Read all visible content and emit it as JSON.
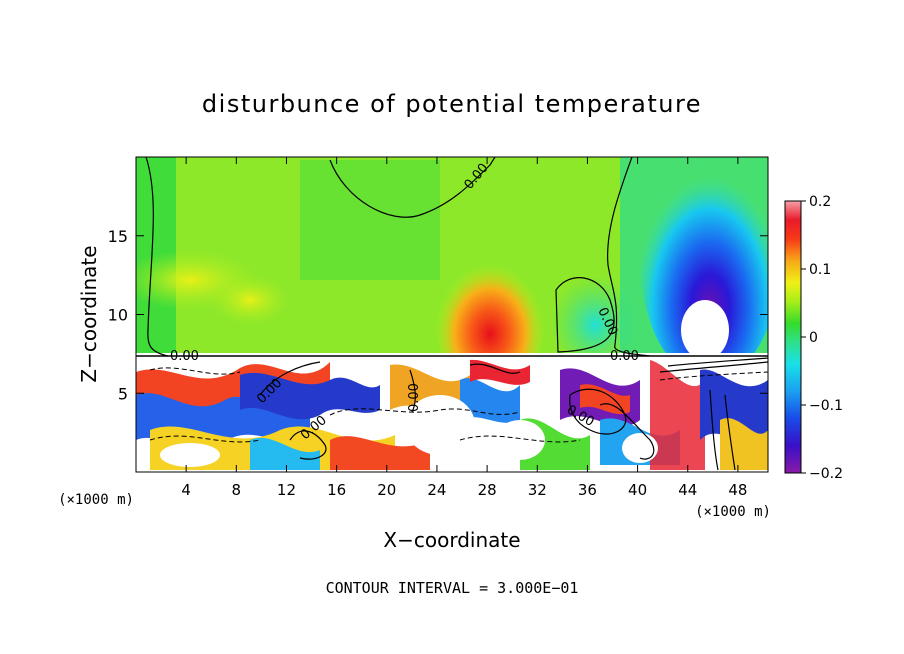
{
  "chart_data": {
    "type": "heatmap",
    "title": "disturbunce of potential temperature",
    "xlabel": "X−coordinate",
    "ylabel": "Z−coordinate",
    "x_unit": "(×1000 m)",
    "y_unit": "(×1000 m)",
    "x_ticks": [
      "4",
      "8",
      "12",
      "16",
      "20",
      "24",
      "28",
      "32",
      "36",
      "40",
      "44",
      "48"
    ],
    "y_ticks": [
      "5",
      "10",
      "15"
    ],
    "xlim": [
      0,
      50.4
    ],
    "ylim": [
      0,
      20
    ],
    "colorbar": {
      "ticks": [
        "0.2",
        "0.1",
        "0",
        "−0.1",
        "−0.2"
      ],
      "range": [
        -0.2,
        0.2
      ]
    },
    "contour_labels": [
      "0.00",
      "0.00",
      "0.00",
      "0.00",
      "0.00",
      "0.00",
      "0.00",
      "0.00"
    ],
    "footnote": "CONTOUR INTERVAL = 3.000E−01"
  }
}
